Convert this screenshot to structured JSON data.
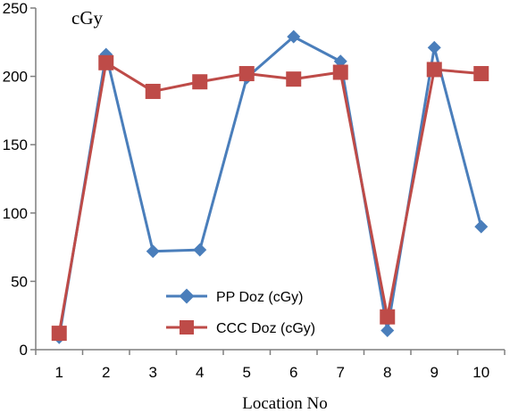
{
  "chart_data": {
    "type": "line",
    "title": "",
    "unit_label": "cGy",
    "xlabel": "Location No",
    "ylabel": "",
    "x": [
      1,
      2,
      3,
      4,
      5,
      6,
      7,
      8,
      9,
      10
    ],
    "x_tick_labels": [
      "1",
      "2",
      "3",
      "4",
      "5",
      "6",
      "7",
      "8",
      "9",
      "10"
    ],
    "y_tick_labels": [
      "0",
      "50",
      "100",
      "150",
      "200",
      "250"
    ],
    "ylim": [
      0,
      250
    ],
    "grid": false,
    "legend_position": "bottom-center",
    "series": [
      {
        "name": "PP Doz (cGy)",
        "color": "#4a7ebb",
        "marker": "diamond",
        "values": [
          9,
          216,
          72,
          73,
          199,
          229,
          211,
          14,
          221,
          90
        ]
      },
      {
        "name": "CCC Doz (cGy)",
        "color": "#be4b48",
        "marker": "square",
        "values": [
          12,
          210,
          189,
          196,
          202,
          198,
          203,
          24,
          205,
          202
        ]
      }
    ]
  }
}
